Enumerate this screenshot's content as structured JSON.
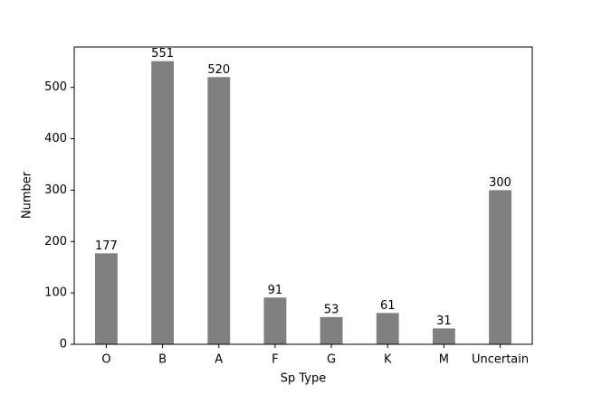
{
  "chart_data": {
    "type": "bar",
    "x_label": "Sp Type",
    "y_label": "Number",
    "categories": [
      "O",
      "B",
      "A",
      "F",
      "G",
      "K",
      "M",
      "Uncertain"
    ],
    "values": [
      177,
      551,
      520,
      91,
      53,
      61,
      31,
      300
    ],
    "color": "#808080",
    "ylim": [
      0,
      578.55
    ],
    "yticks": [
      0,
      100,
      200,
      300,
      400,
      500
    ],
    "grid": false
  }
}
